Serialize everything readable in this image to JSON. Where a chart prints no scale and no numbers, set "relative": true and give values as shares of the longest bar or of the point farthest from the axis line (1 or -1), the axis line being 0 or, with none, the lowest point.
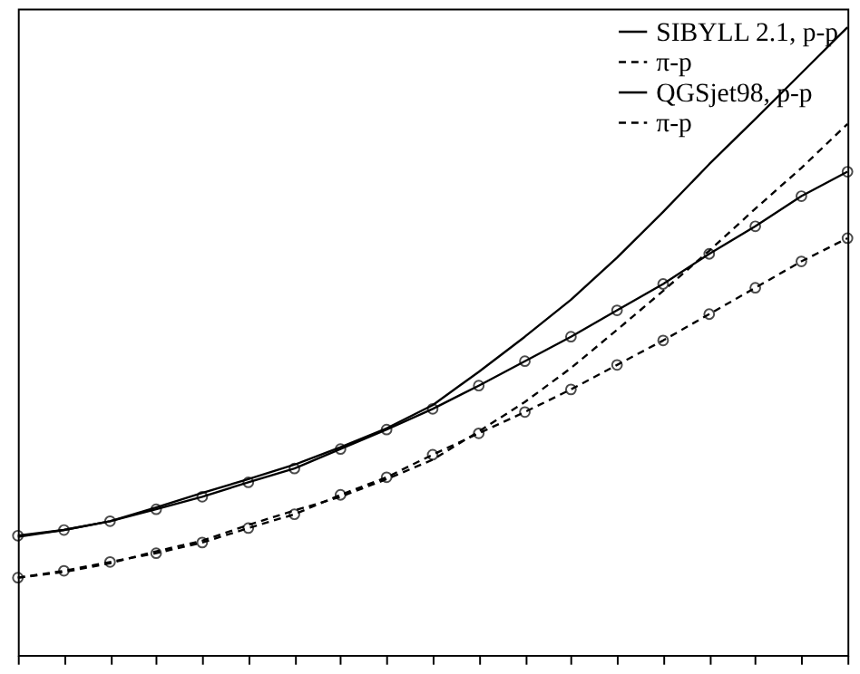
{
  "chart_data": {
    "type": "line",
    "relative": true,
    "tick_labels": false,
    "grid": false,
    "legend": "top right",
    "categories": [
      null,
      null,
      null,
      null,
      null,
      null,
      null,
      null,
      null,
      null,
      null,
      null,
      null,
      null,
      null,
      null,
      null,
      null,
      null
    ],
    "series": [
      {
        "name": "SIBYLL 2.1, p-p",
        "color": "#000000",
        "line_style": "solid",
        "marker": "none",
        "values": [
          0.188,
          0.199,
          0.213,
          0.235,
          0.258,
          0.28,
          0.303,
          0.331,
          0.361,
          0.398,
          0.451,
          0.507,
          0.566,
          0.633,
          0.706,
          0.782,
          0.854,
          0.927,
          1
        ]
      },
      {
        "name": "π-p",
        "color": "#000000",
        "line_style": "dashed",
        "marker": "none",
        "values": [
          0.123,
          0.132,
          0.146,
          0.165,
          0.182,
          0.207,
          0.23,
          0.252,
          0.28,
          0.311,
          0.356,
          0.403,
          0.457,
          0.518,
          0.58,
          0.644,
          0.711,
          0.776,
          0.846
        ]
      },
      {
        "name": "QGSjet98, p-p",
        "color": "#000000",
        "line_style": "solid",
        "marker": "circle",
        "values": [
          0.19,
          0.199,
          0.213,
          0.232,
          0.252,
          0.275,
          0.297,
          0.328,
          0.359,
          0.392,
          0.429,
          0.468,
          0.507,
          0.549,
          0.591,
          0.639,
          0.683,
          0.731,
          0.77
        ]
      },
      {
        "name": "π-p",
        "color": "#000000",
        "line_style": "dashed",
        "marker": "circle",
        "values": [
          0.123,
          0.134,
          0.148,
          0.162,
          0.179,
          0.202,
          0.224,
          0.255,
          0.283,
          0.319,
          0.353,
          0.387,
          0.423,
          0.462,
          0.501,
          0.543,
          0.585,
          0.627,
          0.664
        ]
      }
    ]
  }
}
